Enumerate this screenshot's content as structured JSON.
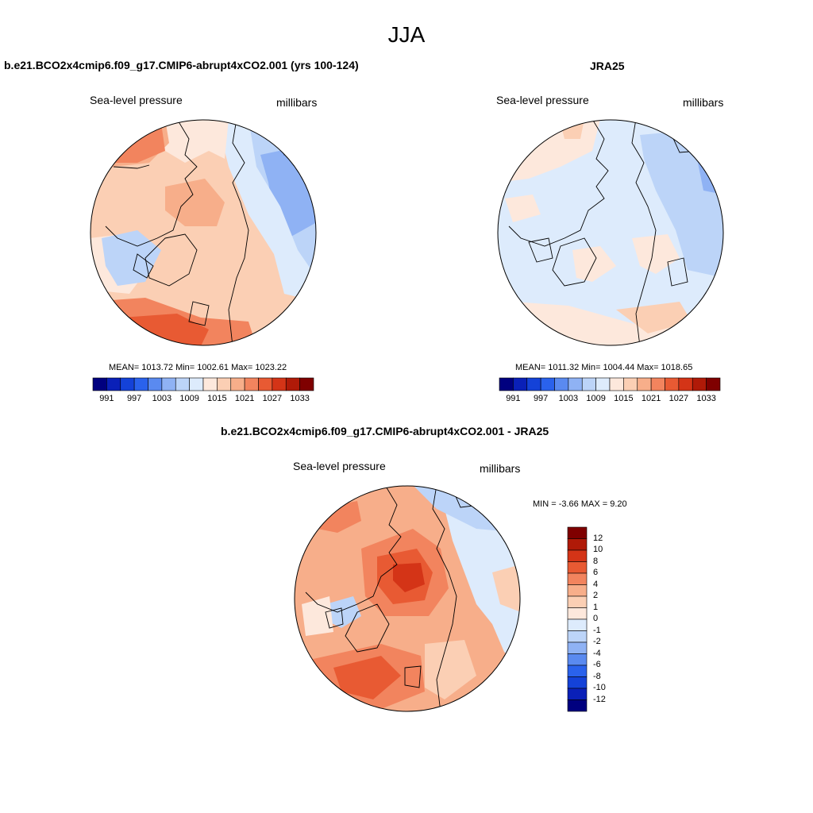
{
  "main_title": "JJA",
  "panels": [
    {
      "title": "b.e21.BCO2x4cmip6.f09_g17.CMIP6-abrupt4xCO2.001 (yrs 100-124)",
      "variable": "Sea-level pressure",
      "units": "millibars",
      "stats": {
        "text": "MEAN= 1013.72   Min= 1002.61   Max= 1023.22",
        "mean": 1013.72,
        "min": 1002.61,
        "max": 1023.22
      }
    },
    {
      "title": "JRA25",
      "variable": "Sea-level pressure",
      "units": "millibars",
      "stats": {
        "text": "MEAN= 1011.32   Min= 1004.44   Max= 1018.65",
        "mean": 1011.32,
        "min": 1004.44,
        "max": 1018.65
      }
    },
    {
      "title": "b.e21.BCO2x4cmip6.f09_g17.CMIP6-abrupt4xCO2.001 - JRA25",
      "variable": "Sea-level pressure",
      "units": "millibars",
      "stats": {
        "text": "MIN =  -3.66 MAX =   9.20",
        "min": -3.66,
        "max": 9.2
      }
    }
  ],
  "abs_colorbar": {
    "tick_labels": [
      "991",
      "997",
      "1003",
      "1009",
      "1015",
      "1021",
      "1027",
      "1033"
    ],
    "colors": [
      "#00007f",
      "#0a20b8",
      "#1442d8",
      "#2a62ec",
      "#5a8af0",
      "#8fb2f4",
      "#bcd4f8",
      "#ddebfc",
      "#fde8dc",
      "#fbcfb4",
      "#f7ae8a",
      "#f2845e",
      "#e85a33",
      "#d43417",
      "#b01a08",
      "#7f0000"
    ]
  },
  "diff_colorbar": {
    "tick_labels": [
      "12",
      "10",
      "8",
      "6",
      "4",
      "2",
      "1",
      "0",
      "-1",
      "-2",
      "-4",
      "-6",
      "-8",
      "-10",
      "-12"
    ],
    "colors": [
      "#7f0000",
      "#b01a08",
      "#d43417",
      "#e85a33",
      "#f2845e",
      "#f7ae8a",
      "#fbcfb4",
      "#fde8dc",
      "#ddebfc",
      "#bcd4f8",
      "#8fb2f4",
      "#5a8af0",
      "#2a62ec",
      "#1442d8",
      "#0a20b8",
      "#00007f"
    ]
  },
  "palette": {
    "pink_light": "#fde8dc",
    "salmon_light": "#fbcfb4",
    "salmon": "#f7ae8a",
    "orange": "#f2845e",
    "red_orange": "#e85a33",
    "red": "#d43417",
    "blue_pale": "#ddebfc",
    "blue_light": "#bcd4f8",
    "blue_mid": "#8fb2f4"
  }
}
